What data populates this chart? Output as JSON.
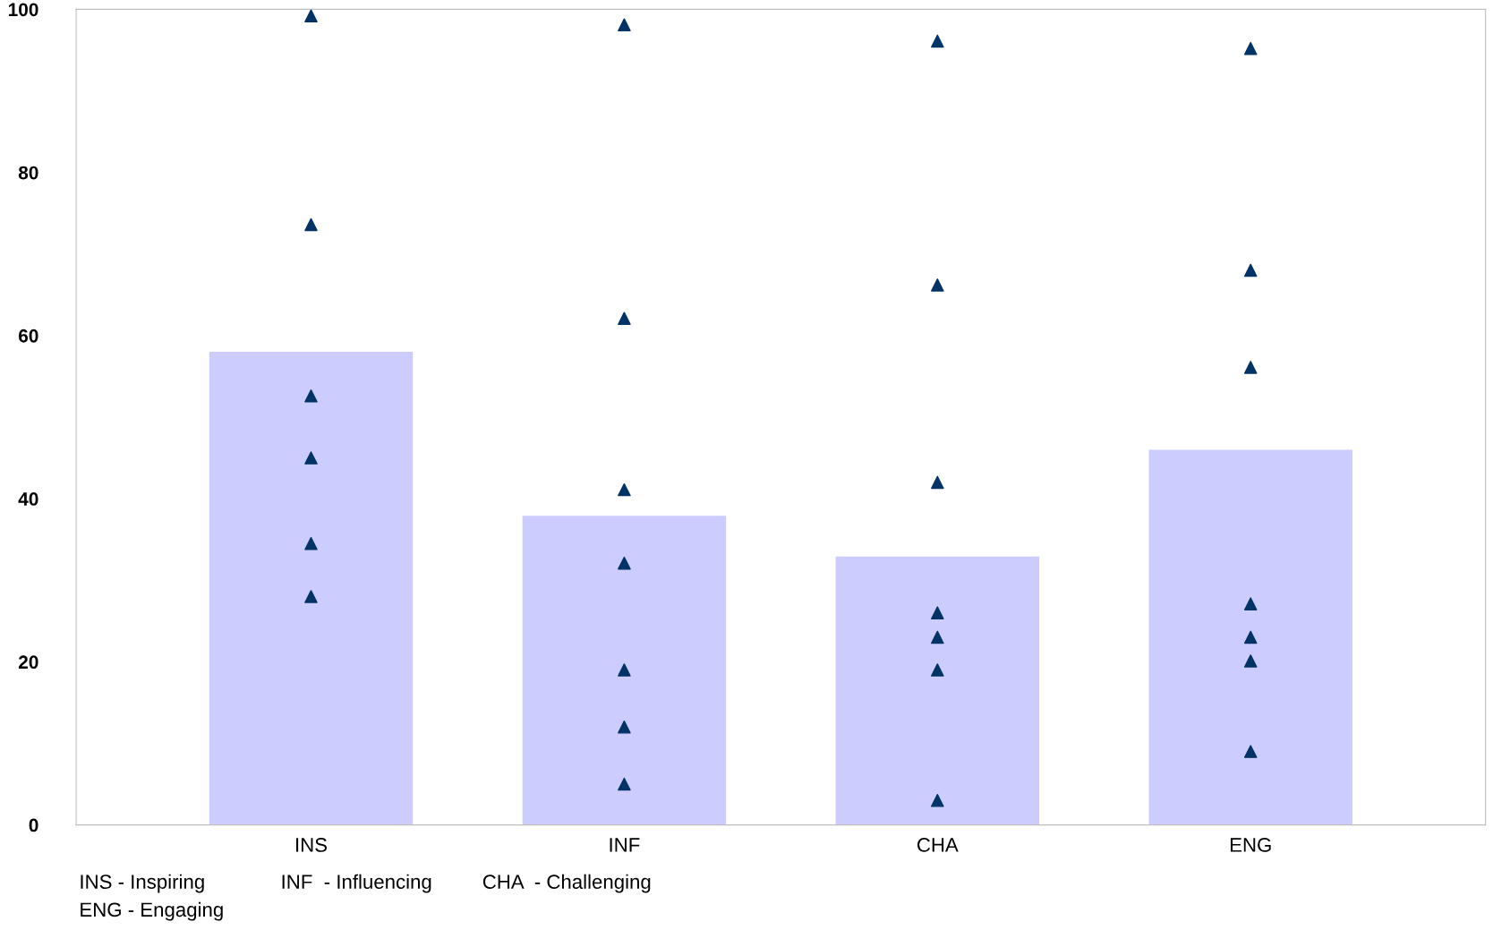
{
  "chart_data": {
    "type": "bar",
    "categories": [
      "INS",
      "INF",
      "CHA",
      "ENG"
    ],
    "series": [
      {
        "color": "#ccccff",
        "values": [
          58.0,
          37.9,
          32.9,
          46.0
        ]
      },
      {
        "type": "scatter",
        "color": "#003366",
        "marker": "triangle",
        "x": [
          "INS",
          "INS",
          "INS",
          "INS",
          "INS",
          "INS",
          "INF",
          "INF",
          "INF",
          "INF",
          "INF",
          "INF",
          "INF",
          "CHA",
          "CHA",
          "CHA",
          "CHA",
          "CHA",
          "CHA",
          "CHA",
          "ENG",
          "ENG",
          "ENG",
          "ENG",
          "ENG",
          "ENG",
          "ENG"
        ],
        "values": [
          99.2,
          73.6,
          52.6,
          45.0,
          34.5,
          28.0,
          98.1,
          62.1,
          41.1,
          32.1,
          19.0,
          12.0,
          5.0,
          96.1,
          66.2,
          42.0,
          26.0,
          23.0,
          19.0,
          3.0,
          95.2,
          68.0,
          56.1,
          27.1,
          23.0,
          20.1,
          9.0
        ]
      }
    ],
    "ylim": [
      0,
      100
    ],
    "yticks": [
      0,
      20,
      40,
      60,
      80,
      100
    ],
    "grid": false,
    "legend": false,
    "annotations": [
      "INS - Inspiring",
      "INF  - Influencing",
      "CHA  - Challenging",
      "ENG - Engaging"
    ]
  }
}
